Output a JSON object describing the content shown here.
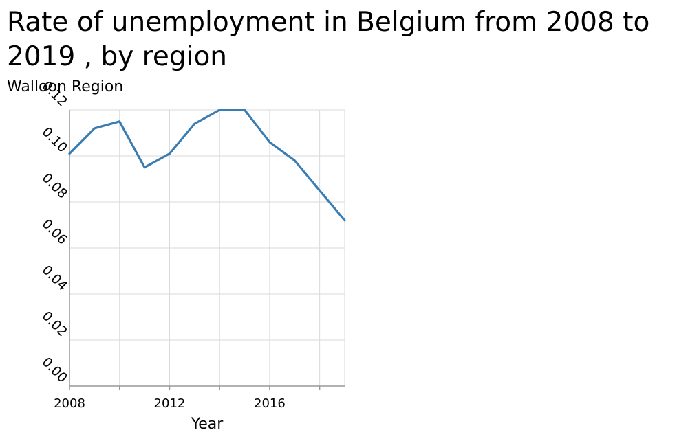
{
  "chart_data": {
    "type": "line",
    "title": "Rate of unemployment in Belgium from 2008 to 2019 , by region",
    "ylabel": "Walloon Region",
    "xlabel": "Year",
    "x": [
      2008,
      2009,
      2010,
      2011,
      2012,
      2013,
      2014,
      2015,
      2016,
      2017,
      2018,
      2019
    ],
    "series": [
      {
        "name": "",
        "values": [
          0.101,
          0.112,
          0.115,
          0.095,
          0.101,
          0.114,
          0.12,
          0.12,
          0.106,
          0.098,
          0.085,
          0.072
        ]
      }
    ],
    "xlim": [
      2008,
      2019
    ],
    "ylim": [
      0,
      0.12
    ],
    "xticks": [
      2008,
      2010,
      2012,
      2014,
      2016,
      2018
    ],
    "xtick_labels": [
      "2008",
      "",
      "2012",
      "",
      "2016",
      ""
    ],
    "yticks": [
      0,
      0.02,
      0.04,
      0.06,
      0.08,
      0.1,
      0.12
    ],
    "ytick_labels": [
      "0.00",
      "0.02",
      "0.04",
      "0.06",
      "0.08",
      "0.10",
      "0.12"
    ],
    "grid": true,
    "line_color": "#3a7db3",
    "grid_color": "#d9d9d9",
    "axis_color": "#999999"
  }
}
